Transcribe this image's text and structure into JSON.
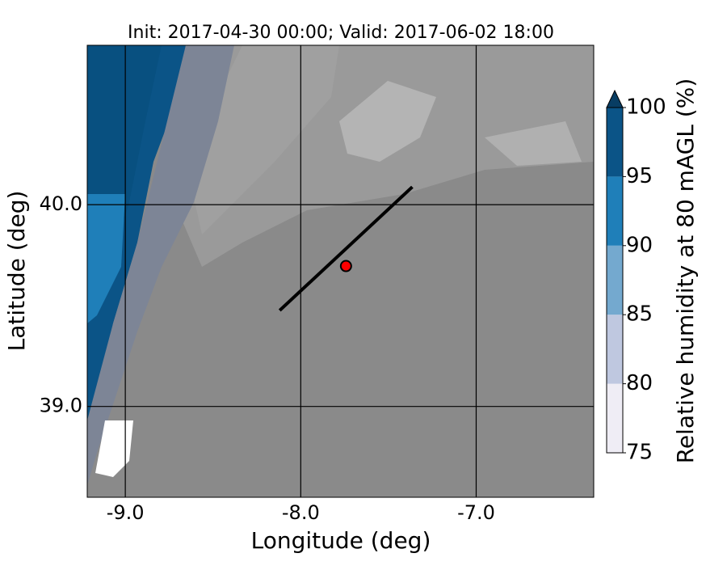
{
  "chart_data": {
    "type": "map",
    "title": "Init: 2017-04-30 00:00; Valid: 2017-06-02 18:00",
    "x_label": "Longitude (deg)",
    "y_label": "Latitude (deg)",
    "xlim": [
      -9.217,
      -6.33
    ],
    "ylim": [
      38.55,
      40.79
    ],
    "xticks": [
      {
        "value": -9,
        "label": "-9.0"
      },
      {
        "value": -8,
        "label": "-8.0"
      },
      {
        "value": -7,
        "label": "-7.0"
      }
    ],
    "yticks": [
      {
        "value": 39,
        "label": "39.0"
      },
      {
        "value": 40,
        "label": "40.0"
      }
    ],
    "grid": true,
    "section": {
      "x": [
        -8.12,
        -7.364
      ],
      "y": [
        39.476,
        40.088
      ],
      "color": "#000000"
    },
    "point": {
      "x": -7.742,
      "y": 39.696,
      "color": "#ff0000"
    },
    "colorbar": {
      "label": "Relative humidity at 80 mAGL (%)",
      "levels": [
        75,
        80,
        85,
        90,
        95,
        100
      ],
      "colors": [
        "#efedf5",
        "#bfc8e0",
        "#74a9cf",
        "#1f7fb9",
        "#0b5487"
      ],
      "extend_color": "#083d63"
    }
  }
}
